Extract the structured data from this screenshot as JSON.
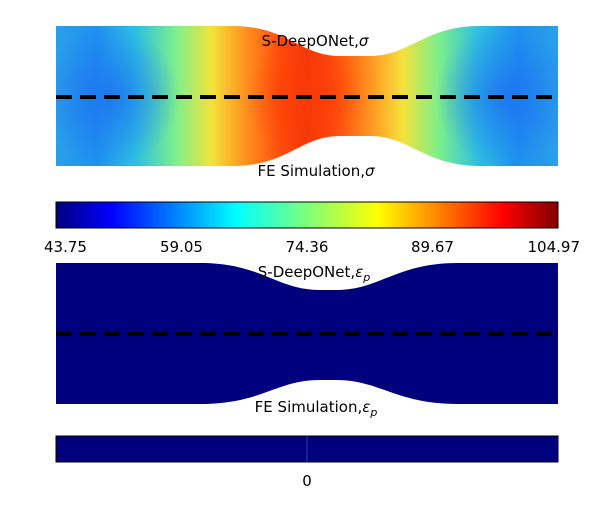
{
  "panels": [
    {
      "field": "stress",
      "top_label": "S-DeepONet,",
      "top_symbol": "σ",
      "bottom_label": "FE Simulation,",
      "bottom_symbol": "σ"
    },
    {
      "field": "plastic_strain",
      "top_label": "S-DeepONet,",
      "top_symbol": "ε",
      "top_subscript": "p",
      "bottom_label": "FE Simulation,",
      "bottom_symbol": "ε",
      "bottom_subscript": "p"
    }
  ],
  "colorbar_stress": {
    "ticks": [
      "43.75",
      "59.05",
      "74.36",
      "89.67",
      "104.97"
    ],
    "min": 43.75,
    "max": 104.97,
    "colormap": "jet"
  },
  "colorbar_strain": {
    "ticks": [
      "0"
    ],
    "colormap": "jet"
  },
  "colors": {
    "uniform_fill": "#00007f",
    "divider": "#000000"
  }
}
